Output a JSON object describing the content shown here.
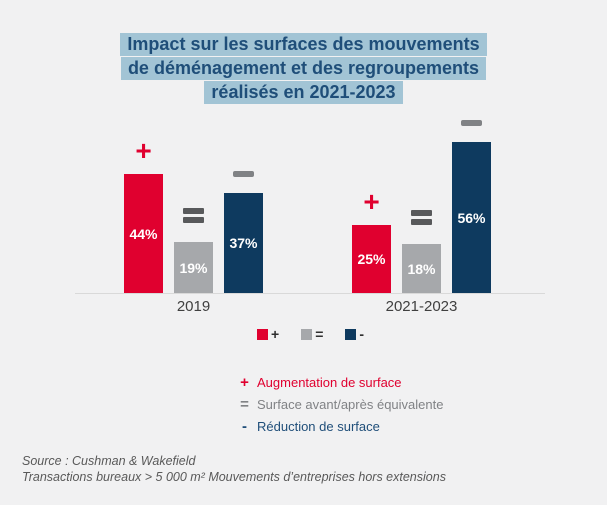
{
  "title": {
    "lines": [
      "Impact sur les surfaces des mouvements",
      "de déménagement et des regroupements",
      "réalisés en 2021-2023"
    ],
    "text_color": "#1F4E79",
    "highlight_color": "#A2C4D5"
  },
  "chart_data": {
    "type": "bar",
    "title": "Impact sur les surfaces des mouvements de déménagement et des regroupements réalisés en 2021-2023",
    "categories": [
      "2019",
      "2021-2023"
    ],
    "series": [
      {
        "key": "increase",
        "symbol": "+",
        "label": "Augmentation de surface",
        "color": "#E0002F",
        "symbol_color": "#E0002F",
        "values": [
          44,
          25
        ]
      },
      {
        "key": "equivalent",
        "symbol": "=",
        "label": "Surface avant/après équivalente",
        "color": "#A6A8AB",
        "symbol_color": "#58595B",
        "values": [
          19,
          18
        ]
      },
      {
        "key": "decrease",
        "symbol": "-",
        "label": "Réduction de surface",
        "color": "#0E3A5F",
        "symbol_color": "#808285",
        "values": [
          37,
          56
        ]
      }
    ],
    "value_suffix": "%",
    "ylim": [
      0,
      60
    ],
    "grid": false,
    "legend_position": "bottom"
  },
  "mini_legend": {
    "symbol_color": "#2F2F2F",
    "items": [
      {
        "symbol": "+",
        "swatch_color": "#E0002F"
      },
      {
        "symbol": "=",
        "swatch_color": "#A6A8AB"
      },
      {
        "symbol": "-",
        "swatch_color": "#0E3A5F"
      }
    ]
  },
  "legend": {
    "items": [
      {
        "symbol": "+",
        "label": "Augmentation de surface",
        "color": "#E0002F"
      },
      {
        "symbol": "=",
        "label": "Surface avant/après équivalente",
        "color": "#808285"
      },
      {
        "symbol": "-",
        "label": "Réduction de surface",
        "color": "#1F4E79"
      }
    ]
  },
  "source": {
    "line1": "Source : Cushman & Wakefield",
    "line2": "Transactions bureaux > 5 000 m² Mouvements d’entreprises hors extensions"
  },
  "colors": {
    "background": "#F1F1F2",
    "axis_line": "#D9D9D9",
    "axis_label": "#404040",
    "bar_value_text": "#FFFFFF",
    "source_text": "#595959"
  }
}
